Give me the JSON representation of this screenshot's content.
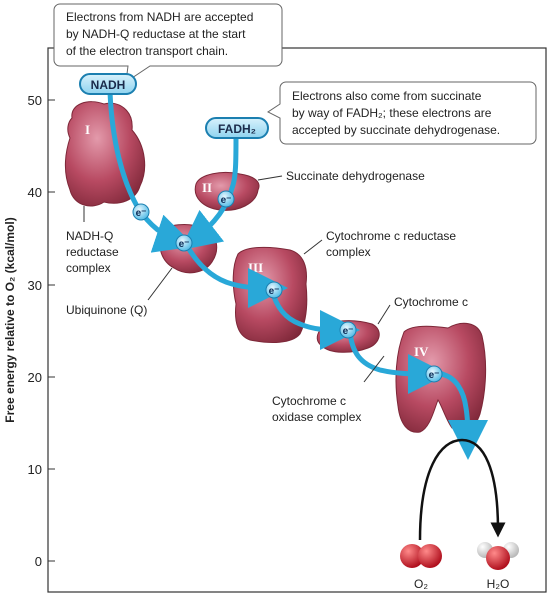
{
  "callouts": {
    "nadh": [
      "Electrons from NADH are accepted",
      "by NADH-Q reductase at the start",
      "of the electron transport chain."
    ],
    "fadh2": [
      "Electrons also come from succinate",
      "by way of FADH₂; these electrons are",
      "accepted by succinate dehydrogenase."
    ]
  },
  "axis": {
    "ylabel": "Free energy relative to O₂ (kcal/mol)",
    "ticks": [
      "50",
      "40",
      "30",
      "20",
      "10",
      "0"
    ]
  },
  "carriers": {
    "nadh": "NADH",
    "fadh2": "FADH₂",
    "electron": "e⁻"
  },
  "complexes": {
    "c1": {
      "numeral": "I",
      "label": [
        "NADH-Q",
        "reductase",
        "complex"
      ]
    },
    "c2": {
      "numeral": "II",
      "label": [
        "Succinate dehydrogenase"
      ]
    },
    "ubiquinone": {
      "label": [
        "Ubiquinone (Q)"
      ]
    },
    "c3": {
      "numeral": "III",
      "label": [
        "Cytochrome c reductase",
        "complex"
      ]
    },
    "cytc": {
      "label": [
        "Cytochrome c"
      ]
    },
    "c4": {
      "numeral": "IV",
      "label": [
        "Cytochrome c",
        "oxidase complex"
      ]
    }
  },
  "products": {
    "o2": "O₂",
    "h2o": "H₂O"
  },
  "colors": {
    "protein": "#b84a62",
    "protein_light": "#d98a9c",
    "arrow": "#29a8d8",
    "arrow_dark": "#1b7fb0",
    "electron_fill": "#7fd0ee",
    "frame": "#333333",
    "oxygen": "#d42a3a",
    "hydrogen": "#e8e8e8"
  }
}
